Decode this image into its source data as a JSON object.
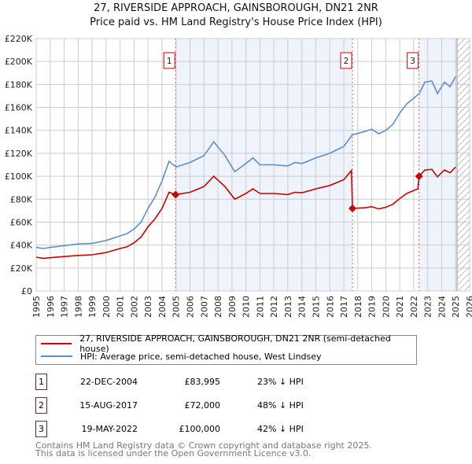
{
  "title": "27, RIVERSIDE APPROACH, GAINSBOROUGH, DN21 2NR",
  "subtitle": "Price paid vs. HM Land Registry's House Price Index (HPI)",
  "chart_data": {
    "type": "line",
    "title": "27, RIVERSIDE APPROACH, GAINSBOROUGH, DN21 2NR",
    "subtitle": "Price paid vs. HM Land Registry's House Price Index (HPI)",
    "xlim": [
      1995,
      2026
    ],
    "ylim": [
      0,
      220000
    ],
    "xticks": [
      "1995",
      "1996",
      "1997",
      "1998",
      "1999",
      "2000",
      "2001",
      "2002",
      "2003",
      "2004",
      "2005",
      "2006",
      "2007",
      "2008",
      "2009",
      "2010",
      "2011",
      "2012",
      "2013",
      "2014",
      "2015",
      "2016",
      "2017",
      "2018",
      "2019",
      "2020",
      "2021",
      "2022",
      "2023",
      "2024",
      "2025",
      "2026"
    ],
    "yticks": [
      "£0",
      "£20K",
      "£40K",
      "£60K",
      "£80K",
      "£100K",
      "£120K",
      "£140K",
      "£160K",
      "£180K",
      "£200K",
      "£220K"
    ],
    "grid": true,
    "series": [
      {
        "name": "27, RIVERSIDE APPROACH, GAINSBOROUGH, DN21 2NR (semi-detached house)",
        "color": "#cc0000",
        "x": [
          1995,
          1995.5,
          1996,
          1997,
          1998,
          1999,
          2000,
          2001,
          2001.5,
          2002,
          2002.5,
          2003,
          2003.5,
          2004,
          2004.5,
          2004.97,
          2006,
          2007,
          2007.7,
          2008.5,
          2009.2,
          2010,
          2010.5,
          2011,
          2012,
          2013,
          2013.5,
          2014,
          2015,
          2016,
          2017,
          2017.55,
          2017.62,
          2018.5,
          2019,
          2019.5,
          2020,
          2020.5,
          2021,
          2021.5,
          2022,
          2022.3,
          2022.38,
          2022.8,
          2023.3,
          2023.7,
          2024.2,
          2024.6,
          2025.0
        ],
        "y": [
          29500,
          28500,
          29000,
          30000,
          31000,
          31500,
          33500,
          37000,
          38500,
          42000,
          47000,
          56000,
          63000,
          72000,
          86000,
          83995,
          86000,
          91000,
          100000,
          91000,
          80000,
          85000,
          89000,
          85000,
          85000,
          84000,
          86000,
          85500,
          89000,
          92000,
          97000,
          105000,
          72000,
          72500,
          73500,
          71500,
          73000,
          75500,
          80500,
          85000,
          87500,
          89000,
          100000,
          105500,
          106000,
          99500,
          105500,
          103000,
          108000
        ]
      },
      {
        "name": "HPI: Average price, semi-detached house, West Lindsey",
        "color": "#5b8fd4",
        "x": [
          1995,
          1995.5,
          1996,
          1997,
          1998,
          1999,
          2000,
          2001,
          2001.5,
          2002,
          2002.5,
          2003,
          2003.5,
          2004,
          2004.5,
          2005,
          2006,
          2007,
          2007.7,
          2008.5,
          2009.2,
          2010,
          2010.5,
          2011,
          2012,
          2013,
          2013.5,
          2014,
          2015,
          2016,
          2017,
          2017.6,
          2018.5,
          2019,
          2019.5,
          2020,
          2020.5,
          2021,
          2021.5,
          2022,
          2022.4,
          2022.8,
          2023.3,
          2023.7,
          2024.2,
          2024.6,
          2025.0
        ],
        "y": [
          38000,
          37000,
          38000,
          39500,
          41000,
          41500,
          44000,
          48000,
          50000,
          54000,
          60000,
          72000,
          82000,
          96000,
          113000,
          108000,
          112000,
          118000,
          130000,
          118000,
          104000,
          111000,
          116000,
          110000,
          110000,
          109000,
          112000,
          111000,
          116000,
          120000,
          126000,
          136000,
          139000,
          141000,
          137000,
          140000,
          145000,
          155000,
          163000,
          168000,
          172000,
          182000,
          183000,
          172000,
          182000,
          178000,
          187000
        ]
      }
    ],
    "sales": [
      {
        "label": "1",
        "x": 2004.97,
        "y": 83995
      },
      {
        "label": "2",
        "x": 2017.62,
        "y": 72000
      },
      {
        "label": "3",
        "x": 2022.38,
        "y": 100000
      }
    ],
    "shaded_ranges": [
      [
        2004.97,
        2017.62
      ],
      [
        2022.38,
        2025.1
      ]
    ],
    "forecast_hatch_from": 2025.1,
    "legend_position": "below"
  },
  "legend": {
    "items": [
      {
        "label": "27, RIVERSIDE APPROACH, GAINSBOROUGH, DN21 2NR (semi-detached house)",
        "color": "#cc0000"
      },
      {
        "label": "HPI: Average price, semi-detached house, West Lindsey",
        "color": "#5b8fd4"
      }
    ]
  },
  "transactions": [
    {
      "num": "1",
      "date": "22-DEC-2004",
      "price": "£83,995",
      "hpi": "23% ↓ HPI"
    },
    {
      "num": "2",
      "date": "15-AUG-2017",
      "price": "£72,000",
      "hpi": "48% ↓ HPI"
    },
    {
      "num": "3",
      "date": "19-MAY-2022",
      "price": "£100,000",
      "hpi": "42% ↓ HPI"
    }
  ],
  "footer": {
    "line1": "Contains HM Land Registry data © Crown copyright and database right 2025.",
    "line2": "This data is licensed under the Open Government Licence v3.0."
  }
}
